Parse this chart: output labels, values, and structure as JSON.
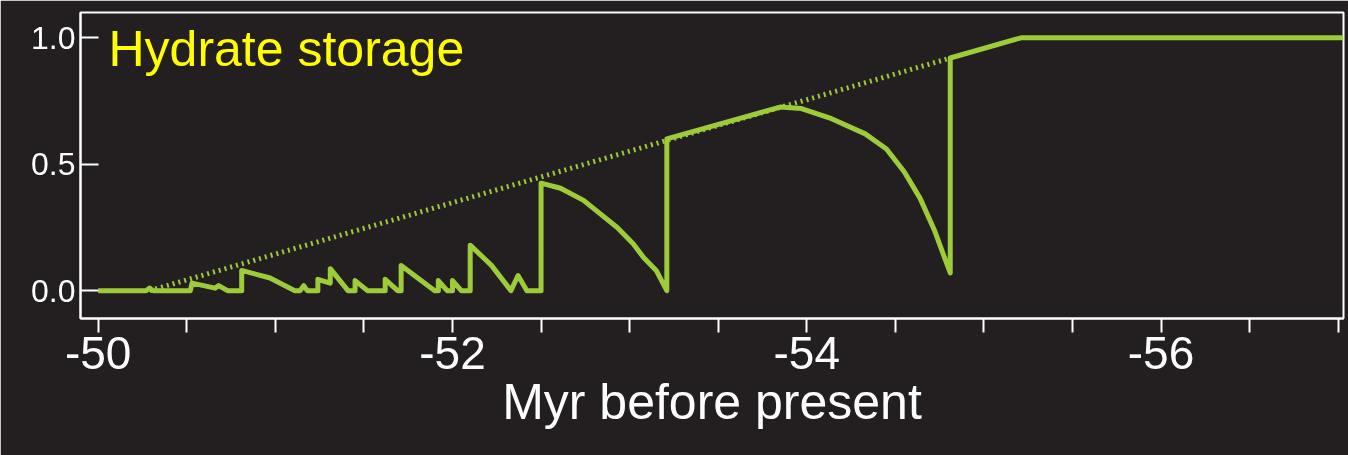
{
  "chart_data": {
    "type": "line",
    "title": "Hydrate storage",
    "xlabel": "Myr before present",
    "xlim": [
      -49.9,
      -57.03
    ],
    "ylim": [
      -0.11,
      1.1
    ],
    "xticks": [
      -50,
      {
        "value": -50.5,
        "label": null
      },
      {
        "value": -51,
        "label": null
      },
      {
        "value": -51.5,
        "label": null
      },
      -52,
      {
        "value": -52.5,
        "label": null
      },
      {
        "value": -53,
        "label": null
      },
      {
        "value": -53.5,
        "label": null
      },
      -54,
      {
        "value": -54.5,
        "label": null
      },
      {
        "value": -55,
        "label": null
      },
      {
        "value": -55.5,
        "label": null
      },
      -56,
      {
        "value": -56.5,
        "label": null
      },
      {
        "value": -57,
        "label": null
      }
    ],
    "yticks": [
      {
        "value": 0,
        "label": "0.0"
      },
      0.5,
      {
        "value": 1,
        "label": "1.0"
      }
    ],
    "grid": false,
    "series": [
      {
        "color": "#9dcb3a",
        "line_style": "solid",
        "x": [
          -50,
          -50.27,
          -50.29,
          -50.31,
          -50.52,
          -50.53,
          -50.66,
          -50.68,
          -50.73,
          -50.81,
          -50.81,
          -50.97,
          -51.11,
          -51.14,
          -51.16,
          -51.18,
          -51.24,
          -51.24,
          -51.31,
          -51.31,
          -51.41,
          -51.45,
          -51.45,
          -51.52,
          -51.62,
          -51.62,
          -51.69,
          -51.71,
          -51.71,
          -51.9,
          -51.92,
          -51.92,
          -51.97,
          -52.0,
          -52.0,
          -52.05,
          -52.1,
          -52.1,
          -52.22,
          -52.33,
          -52.37,
          -52.42,
          -52.5,
          -52.5,
          -52.61,
          -52.74,
          -52.93,
          -53.02,
          -53.08,
          -53.15,
          -53.21,
          -53.21,
          -53.85,
          -53.97,
          -54.14,
          -54.33,
          -54.45,
          -54.55,
          -54.64,
          -54.72,
          -54.81,
          -54.81,
          -55.21,
          -57.03
        ],
        "values": [
          0,
          0,
          0.01,
          0,
          0,
          0.03,
          0.01,
          0.02,
          0,
          0,
          0.08,
          0.05,
          0,
          0,
          0.02,
          0,
          0,
          0.045,
          0.03,
          0.087,
          0,
          0,
          0.04,
          0,
          0,
          0.045,
          0,
          0,
          0.1,
          0,
          0,
          0.04,
          0,
          0,
          0.04,
          0,
          0,
          0.18,
          0.1,
          0,
          0.06,
          0,
          0,
          0.425,
          0.405,
          0.357,
          0.25,
          0.186,
          0.13,
          0.08,
          0,
          0.6,
          0.726,
          0.72,
          0.68,
          0.62,
          0.56,
          0.47,
          0.365,
          0.24,
          0.07,
          0.92,
          1.0,
          1.0
        ]
      },
      {
        "color": "#9dcb3a",
        "line_style": "dotted",
        "x": [
          -50.29,
          -54.81
        ],
        "values": [
          0,
          0.92
        ]
      }
    ]
  }
}
